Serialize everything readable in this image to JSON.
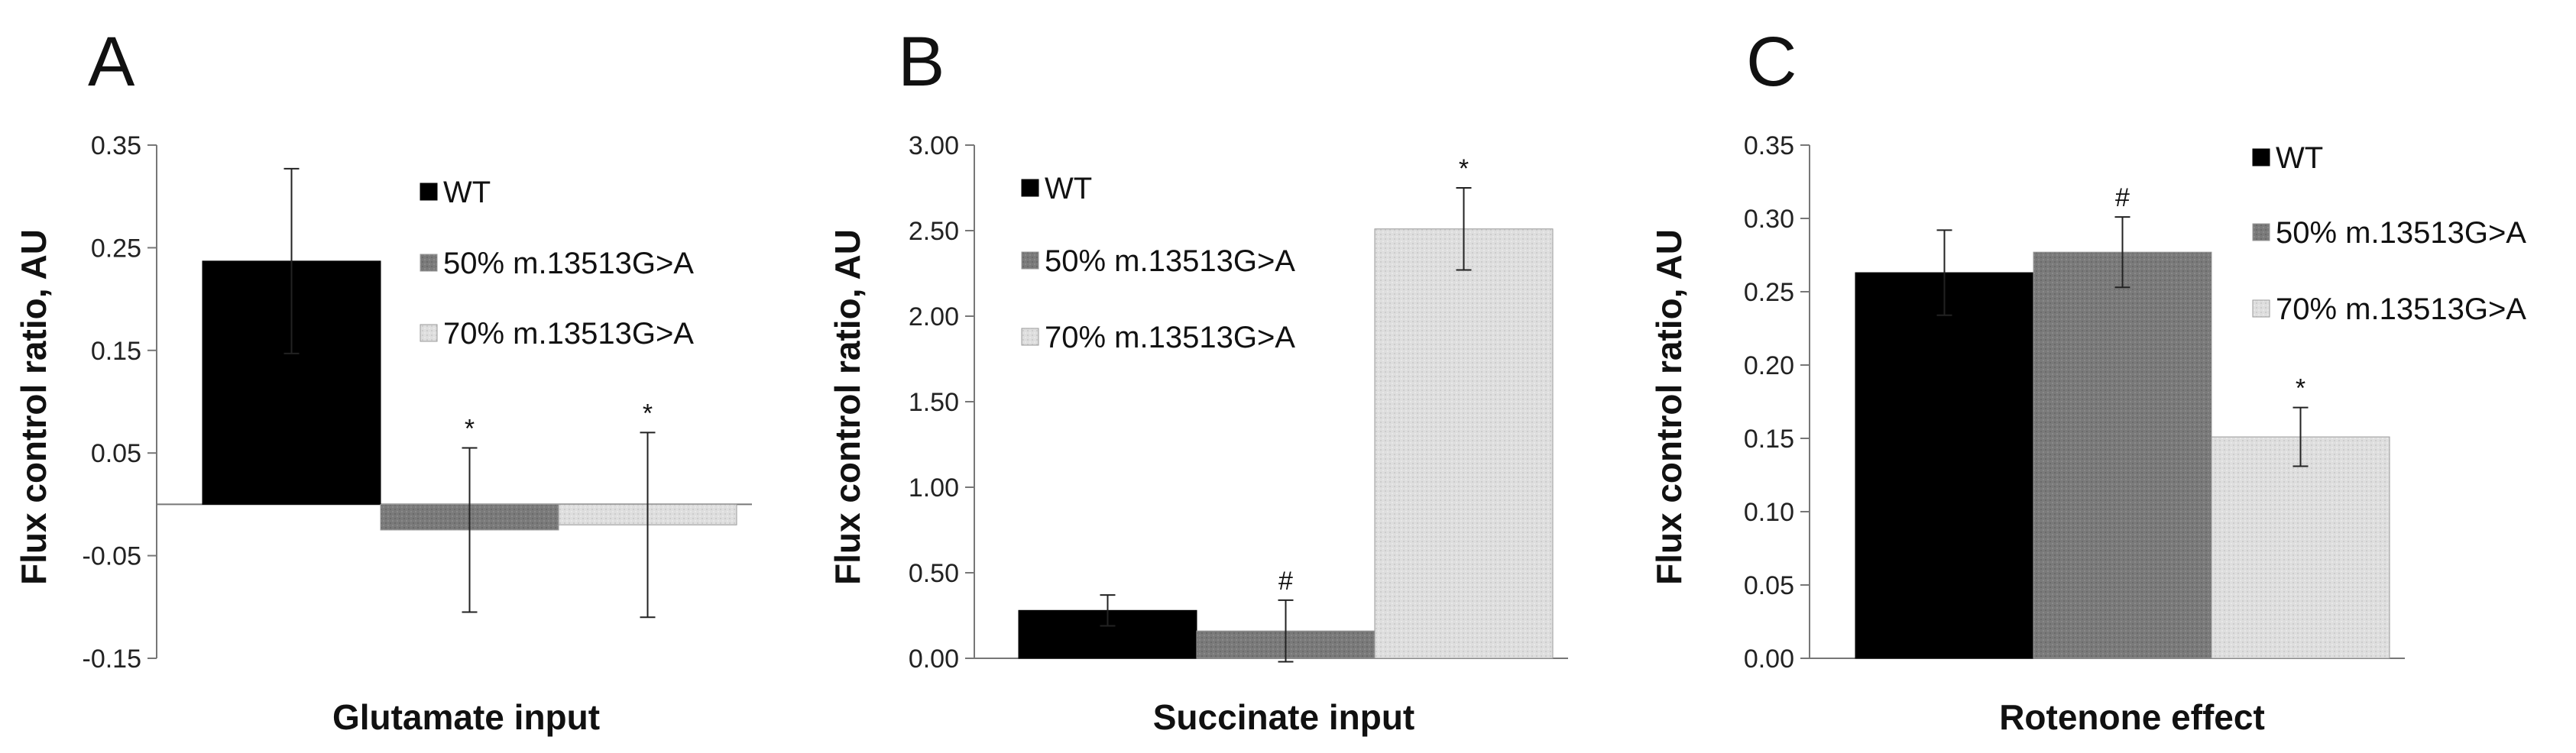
{
  "chart_data": [
    {
      "type": "bar",
      "panel": "A",
      "xlabel": "Glutamate input",
      "ylabel": "Flux control ratio, AU",
      "ylim": [
        -0.15,
        0.35
      ],
      "yticks": [
        "0.35",
        "0.25",
        "0.15",
        "0.05",
        "-0.05",
        "-0.15"
      ],
      "ytick_values": [
        0.35,
        0.25,
        0.15,
        0.05,
        -0.05,
        -0.15
      ],
      "legend_position": "top-right",
      "series": [
        {
          "name": "WT",
          "value": 0.237,
          "error": 0.09,
          "annotation": "",
          "color": "#000000"
        },
        {
          "name": "50% m.13513G>A",
          "value": -0.025,
          "error": 0.08,
          "annotation": "*",
          "color": "#7a7a7a"
        },
        {
          "name": "70% m.13513G>A",
          "value": -0.02,
          "error": 0.09,
          "annotation": "*",
          "color": "#dcdcdc"
        }
      ]
    },
    {
      "type": "bar",
      "panel": "B",
      "xlabel": "Succinate input",
      "ylabel": "Flux control ratio, AU",
      "ylim": [
        0,
        3.0
      ],
      "yticks": [
        "3.00",
        "2.50",
        "2.00",
        "1.50",
        "1.00",
        "0.50",
        "0.00"
      ],
      "ytick_values": [
        3.0,
        2.5,
        2.0,
        1.5,
        1.0,
        0.5,
        0.0
      ],
      "legend_position": "top-left",
      "series": [
        {
          "name": "WT",
          "value": 0.28,
          "error": 0.09,
          "annotation": "",
          "color": "#000000"
        },
        {
          "name": "50% m.13513G>A",
          "value": 0.16,
          "error": 0.18,
          "annotation": "#",
          "color": "#7a7a7a"
        },
        {
          "name": "70% m.13513G>A",
          "value": 2.51,
          "error": 0.24,
          "annotation": "*",
          "color": "#dcdcdc"
        }
      ]
    },
    {
      "type": "bar",
      "panel": "C",
      "xlabel": "Rotenone effect",
      "ylabel": "Flux control ratio, AU",
      "ylim": [
        0,
        0.35
      ],
      "yticks": [
        "0.35",
        "0.30",
        "0.25",
        "0.20",
        "0.15",
        "0.10",
        "0.05",
        "0.00"
      ],
      "ytick_values": [
        0.35,
        0.3,
        0.25,
        0.2,
        0.15,
        0.1,
        0.05,
        0.0
      ],
      "legend_position": "top-right",
      "series": [
        {
          "name": "WT",
          "value": 0.263,
          "error": 0.029,
          "annotation": "",
          "color": "#000000"
        },
        {
          "name": "50% m.13513G>A",
          "value": 0.277,
          "error": 0.024,
          "annotation": "#",
          "color": "#7a7a7a"
        },
        {
          "name": "70% m.13513G>A",
          "value": 0.151,
          "error": 0.02,
          "annotation": "*",
          "color": "#dcdcdc"
        }
      ]
    }
  ]
}
